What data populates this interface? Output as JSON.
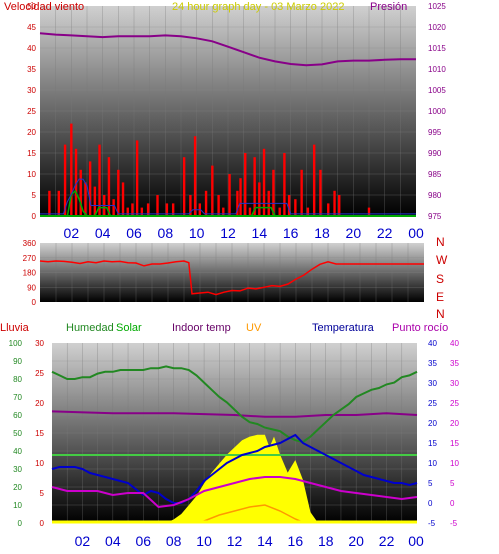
{
  "colors": {
    "wind": "#ff0000",
    "gust": "#0000cc",
    "wind_green": "#00aa00",
    "pressure": "#880088",
    "direction": "#ff0000",
    "humidity": "#228822",
    "solar": "#ffff00",
    "indoor": "#44cc44",
    "uv": "#ff9900",
    "temperature": "#0000cc",
    "dewpoint": "#cc00cc",
    "rain": "#ffff00",
    "axis_blue": "#0000cc",
    "axis_red": "#cc0000",
    "header_yellow": "#cccc00",
    "solar_label": "#00aa00",
    "indoor_label": "#660066",
    "uv_label": "#ff9900",
    "temp_label": "#000099",
    "dew_label": "#aa00aa"
  },
  "chart_data": [
    {
      "type": "bar",
      "title": "24 hour graph day - 03 Marzo 2022",
      "left_label": "Velocidad viento",
      "right_label": "Presión",
      "left_ylim": [
        0,
        50
      ],
      "left_ticks": [
        "0",
        "5",
        "10",
        "15",
        "20",
        "25",
        "30",
        "35",
        "40",
        "45",
        "50"
      ],
      "right_ylim": [
        975,
        1025
      ],
      "right_ticks": [
        "975",
        "980",
        "985",
        "990",
        "995",
        "1000",
        "1005",
        "1010",
        "1015",
        "1020",
        "1025"
      ],
      "x_tick_labels": [
        "02",
        "04",
        "06",
        "08",
        "10",
        "12",
        "14",
        "16",
        "18",
        "20",
        "22",
        "00"
      ],
      "series": [
        {
          "name": "Presión",
          "axis": "right",
          "type": "line",
          "x": [
            0,
            1,
            2,
            3,
            4,
            5,
            6,
            7,
            8,
            9,
            10,
            11,
            12,
            13,
            14,
            15,
            16,
            17,
            18,
            19,
            20,
            21,
            22,
            23,
            24
          ],
          "values": [
            1018.5,
            1018.2,
            1018.0,
            1017.8,
            1017.6,
            1017.8,
            1017.8,
            1017.8,
            1018.0,
            1017.8,
            1017.3,
            1016.6,
            1015.3,
            1014.0,
            1012.7,
            1011.8,
            1011.2,
            1010.9,
            1011.1,
            1011.8,
            1012.0,
            1012.0,
            1012.2,
            1012.3,
            1012.3
          ]
        }
      ],
      "wind_bars": {
        "x": [
          0.6,
          1.2,
          1.6,
          2.0,
          2.3,
          2.6,
          2.9,
          3.2,
          3.5,
          3.8,
          4.1,
          4.4,
          4.7,
          5.0,
          5.3,
          5.6,
          5.9,
          6.2,
          6.5,
          6.9,
          7.5,
          8.1,
          8.5,
          9.2,
          9.6,
          9.9,
          10.2,
          10.6,
          11.0,
          11.4,
          11.7,
          12.1,
          12.6,
          12.8,
          13.1,
          13.4,
          13.7,
          14.0,
          14.3,
          14.6,
          14.9,
          15.3,
          15.6,
          15.9,
          16.3,
          16.7,
          17.1,
          17.5,
          17.9,
          18.4,
          18.8,
          19.1,
          21.0
        ],
        "values": [
          6,
          6,
          17,
          22,
          16,
          11,
          8,
          13,
          7,
          17,
          5,
          14,
          4,
          11,
          8,
          2,
          3,
          18,
          2,
          3,
          5,
          3,
          3,
          14,
          5,
          19,
          3,
          6,
          12,
          5,
          2,
          10,
          6,
          9,
          15,
          2,
          14,
          8,
          16,
          6,
          11,
          2,
          15,
          5,
          4,
          11,
          2,
          17,
          11,
          3,
          6,
          5,
          2
        ]
      }
    },
    {
      "type": "line",
      "right_letters": [
        "N",
        "W",
        "S",
        "E",
        "N"
      ],
      "ylim": [
        0,
        360
      ],
      "y_ticks": [
        "0",
        "90",
        "180",
        "270",
        "360"
      ],
      "series": [
        {
          "name": "direction",
          "type": "line",
          "x": [
            0,
            0.5,
            1,
            1.5,
            2,
            2.5,
            3,
            3.5,
            4,
            4.5,
            5,
            5.5,
            6,
            6.5,
            7,
            7.5,
            8,
            8.5,
            9,
            9.3,
            9.5,
            10,
            10.5,
            11,
            11.5,
            12,
            12.5,
            13,
            13.5,
            14,
            14.5,
            15,
            15.5,
            16,
            16.5,
            17,
            17.5,
            18,
            18.5,
            19,
            20,
            21,
            22,
            23,
            24
          ],
          "values": [
            250,
            245,
            250,
            248,
            242,
            235,
            245,
            240,
            250,
            245,
            248,
            240,
            238,
            220,
            232,
            232,
            238,
            245,
            250,
            240,
            50,
            55,
            60,
            45,
            60,
            70,
            68,
            85,
            80,
            90,
            100,
            95,
            110,
            140,
            165,
            200,
            230,
            245,
            232,
            232,
            232,
            232,
            232,
            232,
            232
          ]
        }
      ]
    },
    {
      "type": "line",
      "header_labels": {
        "rain": "Lluvia",
        "humidity": "Humedad",
        "solar": "Solar",
        "indoor": "Indoor temp",
        "uv": "UV",
        "temperature": "Temperatura",
        "dewpoint": "Punto rocío"
      },
      "humidity_ticks": [
        "0",
        "10",
        "20",
        "30",
        "40",
        "50",
        "60",
        "70",
        "80",
        "90",
        "100"
      ],
      "rain_ticks": [
        "0",
        "5",
        "10",
        "15",
        "20",
        "25",
        "30"
      ],
      "temp_ticks": [
        "-5",
        "0",
        "5",
        "10",
        "15",
        "20",
        "25",
        "30",
        "35",
        "40"
      ],
      "x_tick_labels": [
        "02",
        "04",
        "06",
        "08",
        "10",
        "12",
        "14",
        "16",
        "18",
        "20",
        "22",
        "00"
      ],
      "temp_ylim": [
        -5,
        40
      ],
      "series": [
        {
          "name": "Humedad",
          "axis": "humidity",
          "ylim": [
            0,
            100
          ],
          "x": [
            0,
            0.5,
            1,
            1.5,
            2,
            2.5,
            3,
            3.5,
            4,
            4.5,
            5,
            5.5,
            6,
            6.5,
            7,
            7.5,
            8,
            8.5,
            9,
            9.5,
            10,
            10.5,
            11,
            11.5,
            12,
            12.5,
            13,
            13.5,
            14,
            14.5,
            15,
            15.5,
            16,
            16.5,
            17,
            17.5,
            18,
            18.5,
            19,
            19.5,
            20,
            20.5,
            21,
            21.5,
            22,
            22.5,
            23,
            23.5,
            24
          ],
          "values": [
            84,
            82,
            80,
            80,
            81,
            81,
            83,
            84,
            84,
            85,
            85,
            85,
            85,
            86,
            86,
            87,
            86,
            86,
            85,
            82,
            78,
            74,
            70,
            67,
            63,
            59,
            56,
            55,
            53,
            52,
            51,
            48,
            46,
            45,
            48,
            52,
            56,
            60,
            63,
            66,
            70,
            72,
            74,
            75,
            77,
            78,
            81,
            82,
            84
          ]
        },
        {
          "name": "Temperatura",
          "axis": "temp",
          "x": [
            0,
            0.5,
            1,
            1.5,
            2,
            2.5,
            3,
            3.5,
            4,
            4.5,
            5,
            5.5,
            6,
            6.5,
            7,
            7.5,
            8,
            8.5,
            9,
            9.5,
            10,
            10.5,
            11,
            11.5,
            12,
            12.5,
            13,
            13.5,
            14,
            14.5,
            15,
            15.5,
            16,
            16.5,
            17,
            17.5,
            18,
            18.5,
            19,
            19.5,
            20,
            20.5,
            21,
            21.5,
            22,
            22.5,
            23,
            23.5,
            24
          ],
          "values": [
            8.5,
            9,
            9,
            9,
            8.5,
            7.5,
            7,
            6.5,
            6,
            5.5,
            5,
            3.5,
            2,
            3,
            2.5,
            1,
            0,
            0,
            1,
            3,
            5.5,
            7,
            8.5,
            10,
            11,
            12,
            12.5,
            13,
            14,
            14.5,
            15,
            16,
            17,
            15,
            14,
            13,
            12,
            11,
            10,
            9,
            8,
            7,
            6.5,
            6,
            5.5,
            5,
            5,
            4.5,
            5
          ]
        },
        {
          "name": "Punto rocío",
          "axis": "temp",
          "x": [
            0,
            1,
            2,
            3,
            4,
            5,
            6,
            7,
            8,
            9,
            10,
            11,
            12,
            13,
            14,
            15,
            16,
            17,
            18,
            19,
            20,
            21,
            22,
            23,
            24
          ],
          "values": [
            4,
            3,
            3,
            3,
            2,
            2.5,
            2.5,
            -1,
            -0.5,
            1,
            3,
            4,
            5,
            6,
            6.5,
            6.5,
            6,
            5,
            4,
            3,
            2.5,
            2,
            1.5,
            1,
            1.5
          ]
        },
        {
          "name": "Indoor temp",
          "axis": "temp",
          "x": [
            0,
            24
          ],
          "values": [
            12,
            12
          ]
        },
        {
          "name": "Presión-like purple",
          "axis": "humidity",
          "ylim": [
            0,
            100
          ],
          "x": [
            0,
            4,
            8,
            12,
            14,
            16,
            18,
            20,
            22,
            24
          ],
          "values": [
            62,
            61,
            61,
            60,
            59,
            59,
            60,
            60,
            61,
            60
          ]
        },
        {
          "name": "UV",
          "axis": "temp",
          "x": [
            9.5,
            10,
            11,
            12,
            13,
            14,
            15,
            16,
            16.5
          ],
          "values": [
            -4.8,
            -4.5,
            -3,
            -2,
            -1,
            -0.5,
            -2,
            -4,
            -4.8
          ]
        },
        {
          "name": "Solar",
          "axis": "humidity",
          "ylim": [
            0,
            100
          ],
          "x": [
            7.5,
            8,
            8.5,
            9,
            9.5,
            10,
            10.5,
            11,
            11.5,
            12,
            12.5,
            13,
            13.5,
            14,
            14.3,
            14.6,
            15,
            15.5,
            16,
            16.5,
            17,
            17.5
          ],
          "values": [
            0,
            2,
            5,
            10,
            15,
            22,
            28,
            33,
            38,
            42,
            46,
            48,
            49,
            49,
            42,
            48,
            38,
            28,
            35,
            24,
            6,
            0
          ]
        }
      ]
    }
  ]
}
